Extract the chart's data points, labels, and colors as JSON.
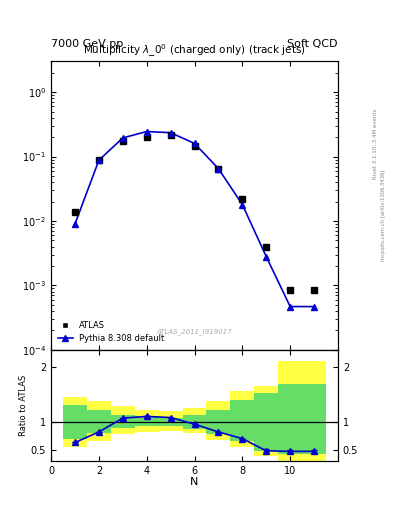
{
  "title_top_left": "7000 GeV pp",
  "title_top_right": "Soft QCD",
  "main_title": "Multiplicity $\\lambda\\_0^0$ (charged only) (track jets)",
  "watermark": "ATLAS_2011_I919017",
  "right_label": "Rivet 3.1.10, 3.4M events",
  "right_label2": "mcplots.cern.ch [arXiv:1306.3436]",
  "atlas_x": [
    1,
    2,
    3,
    4,
    5,
    6,
    7,
    8,
    9,
    10,
    11
  ],
  "atlas_y": [
    0.014,
    0.088,
    0.175,
    0.205,
    0.215,
    0.145,
    0.065,
    0.022,
    0.004,
    0.00085,
    0.00085
  ],
  "pythia_x": [
    1,
    2,
    3,
    4,
    5,
    6,
    7,
    8,
    9,
    10,
    11
  ],
  "pythia_y": [
    0.009,
    0.088,
    0.195,
    0.245,
    0.235,
    0.16,
    0.065,
    0.018,
    0.0028,
    0.00047,
    0.00047
  ],
  "ratio_x": [
    1,
    2,
    3,
    4,
    5,
    6,
    7,
    8,
    9,
    10,
    11
  ],
  "ratio_y": [
    0.63,
    0.82,
    1.07,
    1.1,
    1.08,
    0.96,
    0.82,
    0.7,
    0.48,
    0.47,
    0.47
  ],
  "ratio_yerr": [
    0.0,
    0.0,
    0.0,
    0.0,
    0.0,
    0.0,
    0.0,
    0.0,
    0.03,
    0.03,
    0.03
  ],
  "band_x_edges": [
    0.5,
    1.5,
    2.5,
    3.5,
    4.5,
    5.5,
    6.5,
    7.5,
    8.5,
    9.5,
    10.5,
    11.5
  ],
  "band_yellow_lo": [
    0.55,
    0.65,
    0.78,
    0.82,
    0.83,
    0.8,
    0.68,
    0.55,
    0.38,
    0.3,
    0.3
  ],
  "band_yellow_hi": [
    1.45,
    1.38,
    1.28,
    1.22,
    1.2,
    1.25,
    1.38,
    1.55,
    1.65,
    2.1,
    2.1
  ],
  "band_green_lo": [
    0.7,
    0.8,
    0.9,
    0.92,
    0.92,
    0.87,
    0.78,
    0.65,
    0.48,
    0.43,
    0.43
  ],
  "band_green_hi": [
    1.3,
    1.22,
    1.13,
    1.1,
    1.08,
    1.13,
    1.22,
    1.4,
    1.52,
    1.68,
    1.68
  ],
  "main_ylim_log": [
    0.0001,
    3.0
  ],
  "ratio_ylim": [
    0.3,
    2.3
  ],
  "ratio_yticks": [
    0.5,
    1.0,
    2.0
  ],
  "ratio_ytick_labels": [
    "0.5",
    "1",
    "2"
  ],
  "xlim": [
    0,
    12
  ],
  "xticks": [
    0,
    2,
    4,
    6,
    8,
    10
  ],
  "xlabel": "N",
  "color_atlas": "#000000",
  "color_pythia": "#0000cc",
  "color_green": "#66dd66",
  "color_yellow": "#ffff44",
  "background": "#ffffff"
}
